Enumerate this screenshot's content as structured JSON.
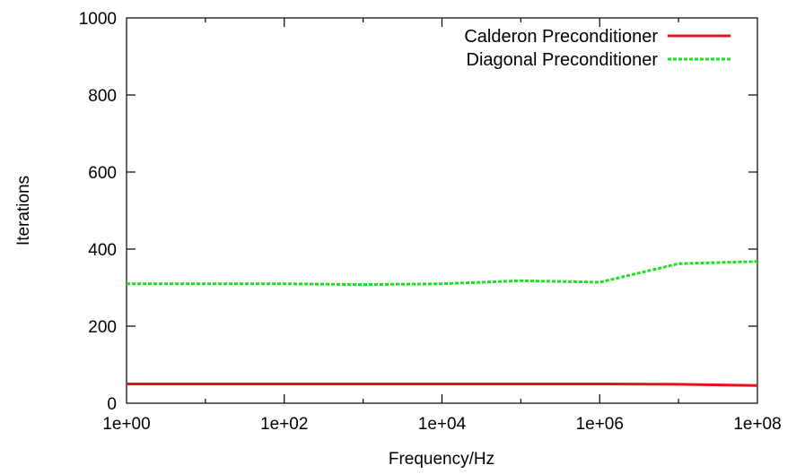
{
  "chart_data": {
    "type": "line",
    "title": "",
    "xlabel": "Frequency/Hz",
    "ylabel": "Iterations",
    "x_scale": "log",
    "xlim": [
      1,
      100000000
    ],
    "ylim": [
      0,
      1000
    ],
    "x_ticks": [
      1,
      100,
      10000,
      1000000,
      100000000
    ],
    "x_tick_labels": [
      "1e+00",
      "1e+02",
      "1e+04",
      "1e+06",
      "1e+08"
    ],
    "y_ticks": [
      0,
      200,
      400,
      600,
      800,
      1000
    ],
    "y_tick_labels": [
      "0",
      "200",
      "400",
      "600",
      "800",
      "1000"
    ],
    "grid": false,
    "legend_position": "top-right",
    "series": [
      {
        "name": "Calderon Preconditioner",
        "color": "#e8101a",
        "style": "solid",
        "x": [
          1,
          10,
          100,
          1000,
          10000,
          100000,
          1000000,
          10000000,
          100000000
        ],
        "y": [
          50,
          50,
          50,
          50,
          50,
          50,
          50,
          49,
          46
        ]
      },
      {
        "name": "Diagonal Preconditioner",
        "color": "#1fe01f",
        "style": "dashed",
        "x": [
          1,
          10,
          100,
          1000,
          10000,
          100000,
          1000000,
          10000000,
          100000000
        ],
        "y": [
          310,
          310,
          310,
          308,
          310,
          318,
          314,
          362,
          368
        ]
      }
    ]
  }
}
